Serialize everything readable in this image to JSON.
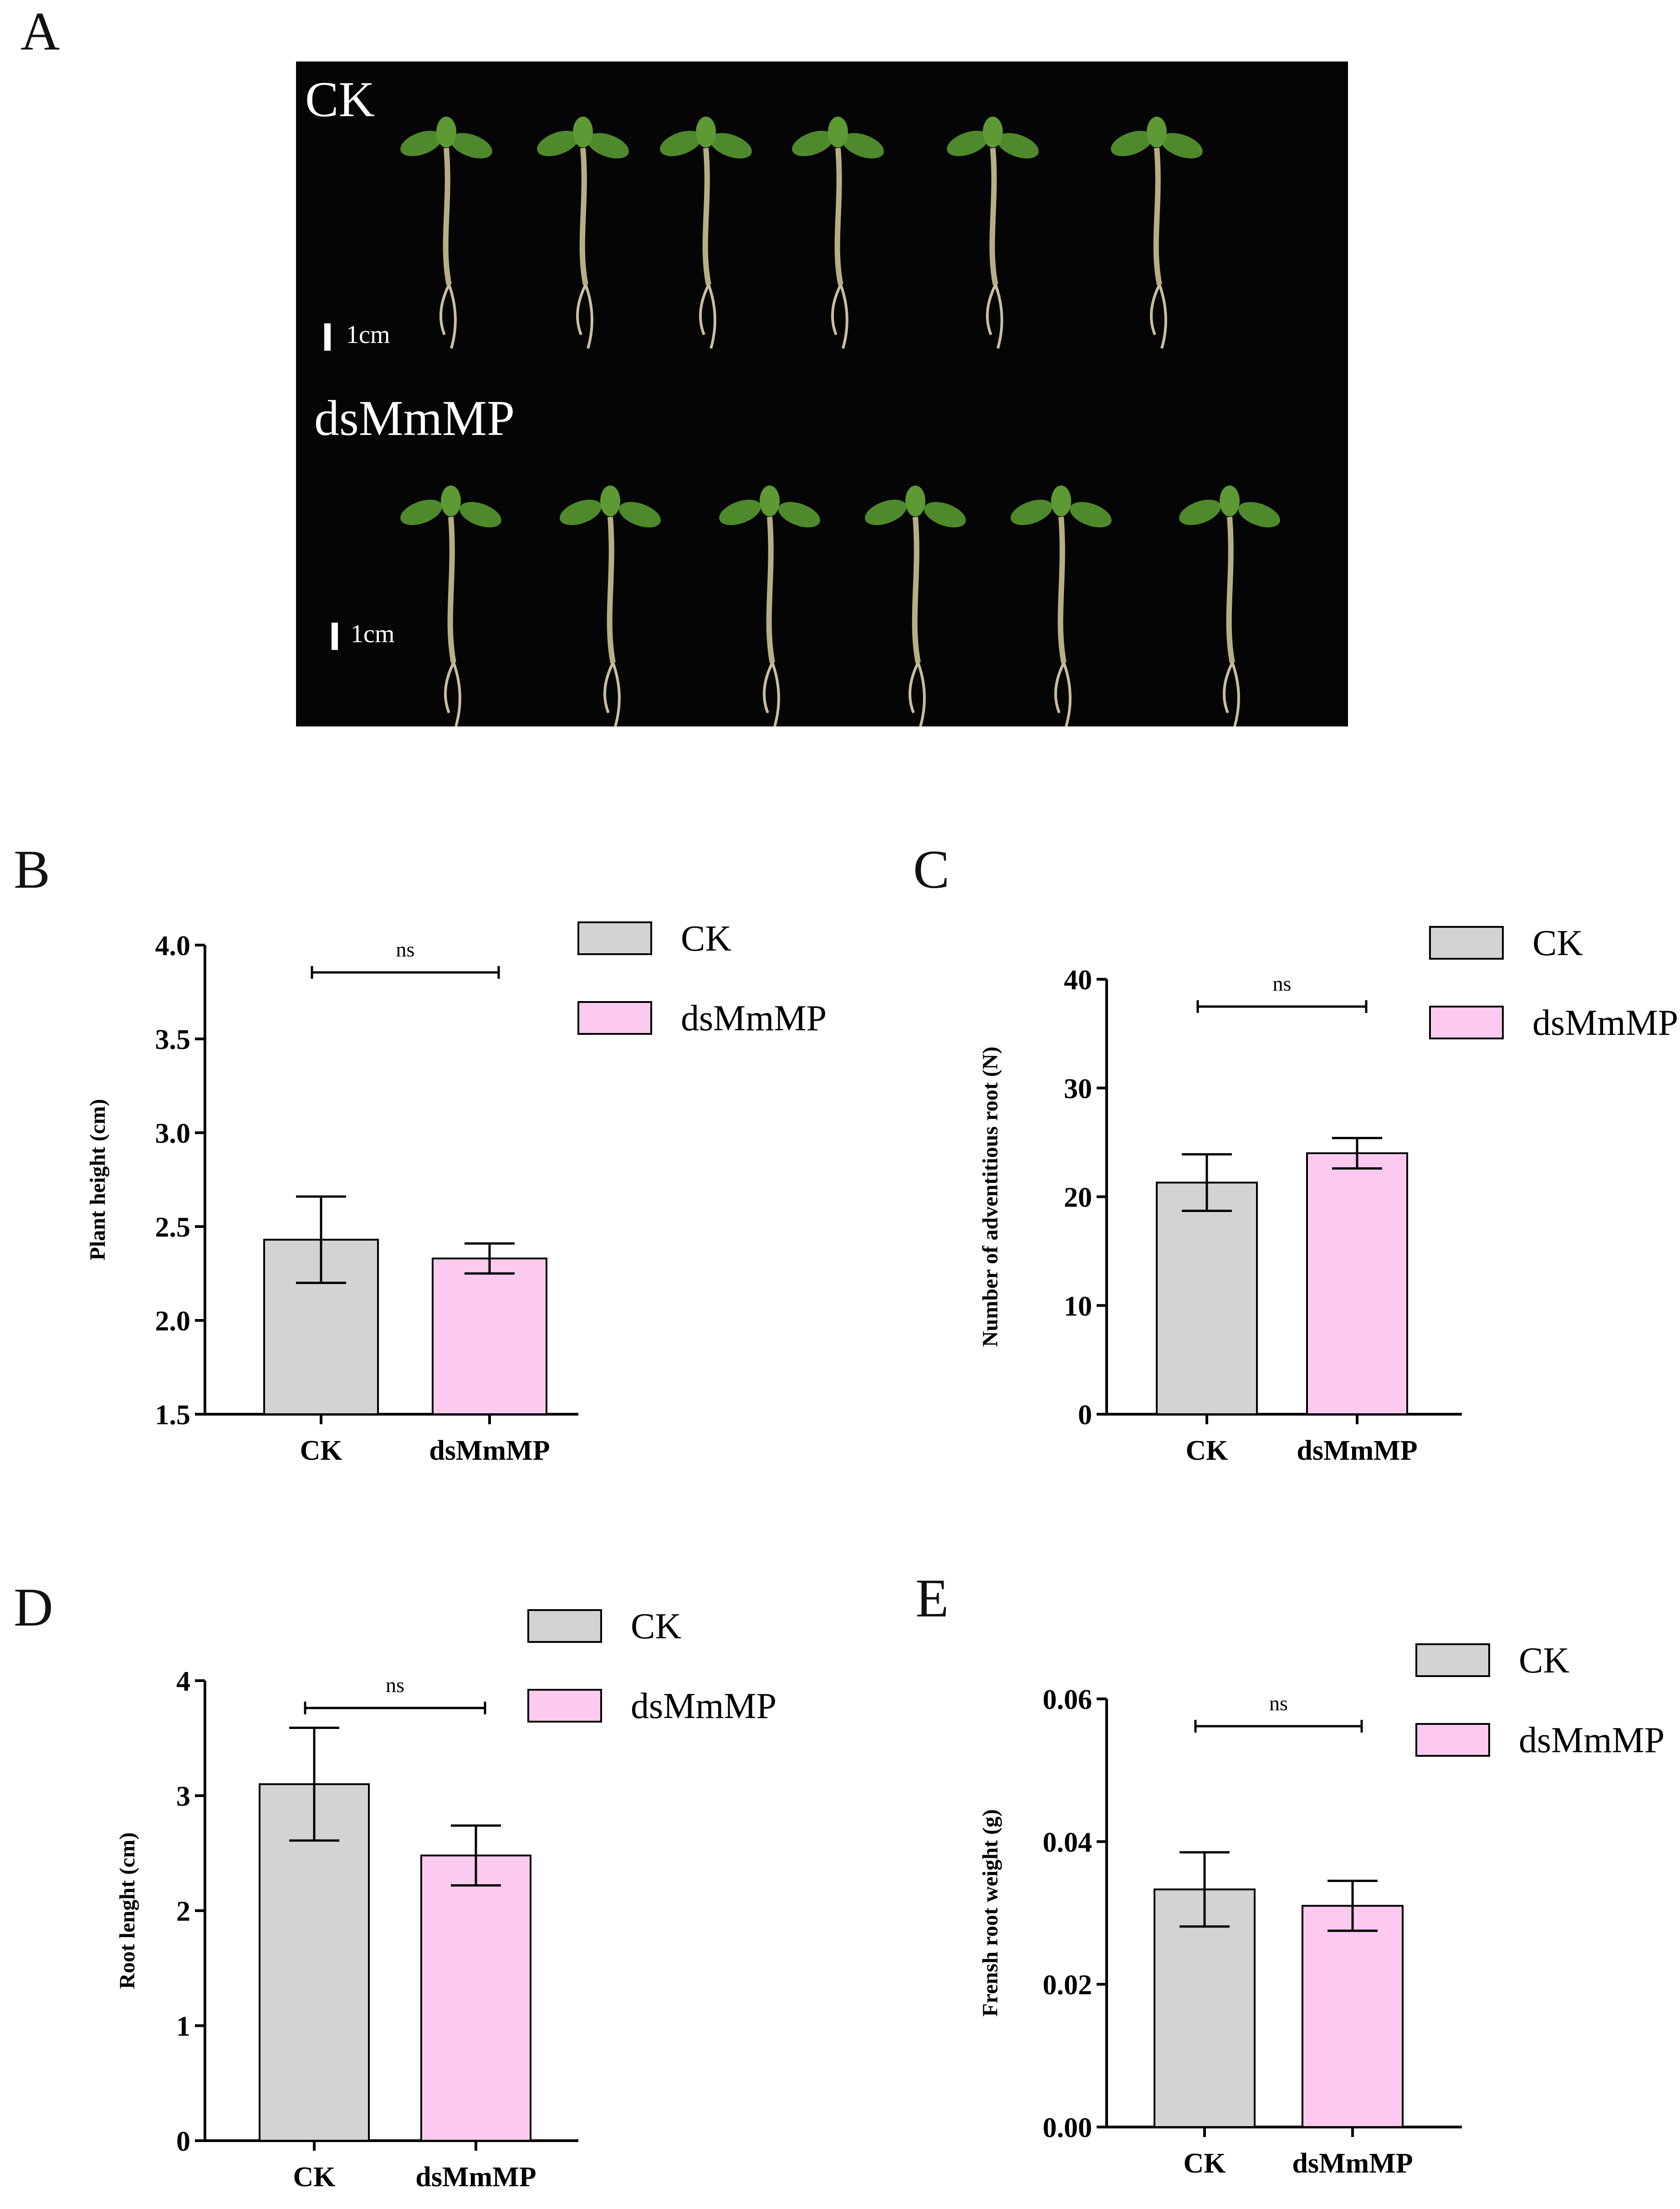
{
  "panels": {
    "A": "A",
    "B": "B",
    "C": "C",
    "D": "D",
    "E": "E"
  },
  "photo": {
    "top_label": "CK",
    "bottom_label": "dsMmMP",
    "scale_label_top": "1cm",
    "scale_label_bottom": "1cm"
  },
  "colors": {
    "ck": "#d3d3d3",
    "dsmmmp": "#fdcaef",
    "photo_bg": "#050505",
    "leaf": "#4e8a2c",
    "stem": "#b9ad84"
  },
  "chart_data": [
    {
      "id": "B",
      "type": "bar",
      "categories": [
        "CK",
        "dsMmMP"
      ],
      "values": [
        2.43,
        2.33
      ],
      "errors": [
        0.23,
        0.08
      ],
      "ylabel": "Plant height (cm)",
      "ylim": [
        1.5,
        4.0
      ],
      "yticks": [
        "1.5",
        "2.0",
        "2.5",
        "3.0",
        "3.5",
        "4.0"
      ],
      "yticks_values": [
        1.5,
        2.0,
        2.5,
        3.0,
        3.5,
        4.0
      ],
      "significance": "ns",
      "legend": [
        "CK",
        "dsMmMP"
      ],
      "legend_position": "top-right"
    },
    {
      "id": "C",
      "type": "bar",
      "categories": [
        "CK",
        "dsMmMP"
      ],
      "values": [
        21.3,
        24.0
      ],
      "errors": [
        2.6,
        1.4
      ],
      "ylabel": "Number of adventitious root (N)",
      "ylim": [
        0,
        40
      ],
      "yticks": [
        "0",
        "10",
        "20",
        "30",
        "40"
      ],
      "yticks_values": [
        0,
        10,
        20,
        30,
        40
      ],
      "significance": "ns",
      "legend": [
        "CK",
        "dsMmMP"
      ],
      "legend_position": "top-right"
    },
    {
      "id": "D",
      "type": "bar",
      "categories": [
        "CK",
        "dsMmMP"
      ],
      "values": [
        3.1,
        2.48
      ],
      "errors": [
        0.49,
        0.26
      ],
      "ylabel": "Root lenght (cm)",
      "ylim": [
        0,
        4
      ],
      "yticks": [
        "0",
        "1",
        "2",
        "3",
        "4"
      ],
      "yticks_values": [
        0,
        1,
        2,
        3,
        4
      ],
      "significance": "ns",
      "legend": [
        "CK",
        "dsMmMP"
      ],
      "legend_position": "top-right"
    },
    {
      "id": "E",
      "type": "bar",
      "categories": [
        "CK",
        "dsMmMP"
      ],
      "values": [
        0.0333,
        0.031
      ],
      "errors": [
        0.0052,
        0.0035
      ],
      "ylabel": "Frensh root weight (g)",
      "ylim": [
        0,
        0.06
      ],
      "yticks": [
        "0.00",
        "0.02",
        "0.04",
        "0.06"
      ],
      "yticks_values": [
        0.0,
        0.02,
        0.04,
        0.06
      ],
      "significance": "ns",
      "legend": [
        "CK",
        "dsMmMP"
      ],
      "legend_position": "top-right"
    }
  ]
}
